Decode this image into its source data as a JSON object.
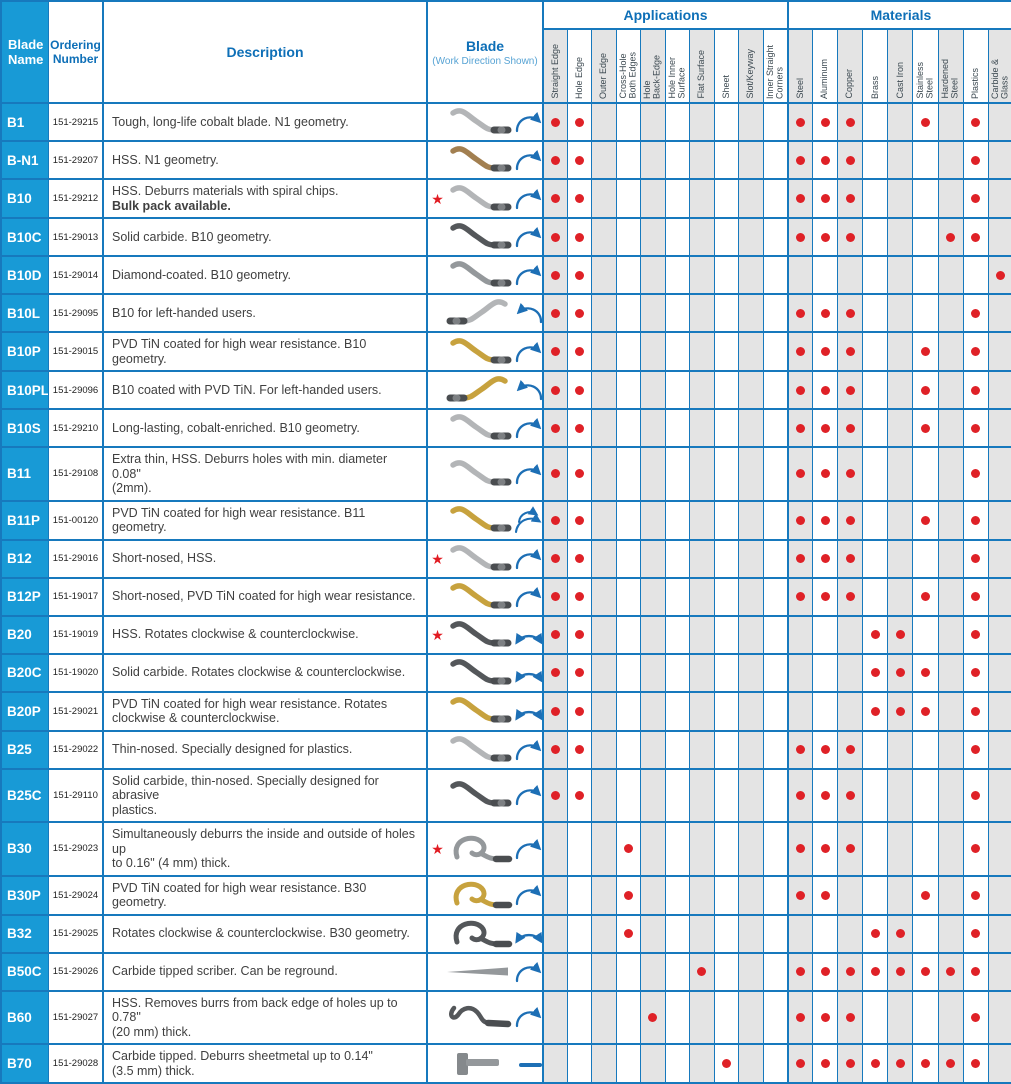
{
  "header": {
    "blade_name": "Blade\nName",
    "ordering_number": "Ordering Number",
    "description": "Description",
    "blade": "Blade",
    "blade_sub": "(Work Direction Shown)",
    "group_applications": "Applications",
    "group_materials": "Materials",
    "applications": [
      "Straight Edge",
      "Hole Edge",
      "Outer Edge",
      "Cross-Hole\nBoth Edges",
      "Hole\nBack-Edge",
      "Hole Inner\nSurface",
      "Flat Surface",
      "Sheet",
      "Slot/Keyway",
      "Inner Straight\nCorners"
    ],
    "materials": [
      "Steel",
      "Aluminum",
      "Copper",
      "Brass",
      "Cast Iron",
      "Stainless\nSteel",
      "Hardened\nSteel",
      "Plastics",
      "Carbide &\nGlass"
    ]
  },
  "colors": {
    "cell_blue": "#189ad6",
    "border_blue": "#1779bd",
    "header_text_blue": "#0e6fb7",
    "sub_text_blue": "#57a3d4",
    "label_gray": "#3d4a52",
    "shade_gray": "#e4e4e4",
    "dot_red": "#df2127",
    "star_red": "#e11b22",
    "arrow_blue": "#1d6fb5",
    "text_dark": "#404040"
  },
  "blade_palette": {
    "silver": "#b3b5b7",
    "bronze": "#a27f50",
    "dark": "#54575a",
    "gold": "#c7a23e",
    "gray": "#94989b",
    "shank": "#4a4d50"
  },
  "icons": {
    "cw": "clockwise-arrow-icon",
    "ccw": "counterclockwise-arrow-icon",
    "both": "both-directions-arrow-icon",
    "cw2": "double-clockwise-arrow-icon",
    "dash": "straight-direction-dash-icon",
    "star": "star-icon"
  },
  "rows": [
    {
      "name": "B1",
      "order": "151-29215",
      "desc": "Tough, long-life cobalt blade. N1 geometry.",
      "desc2": "",
      "star": false,
      "blade": "s",
      "color": "silver",
      "mirror": false,
      "arrow": "cw",
      "apps": [
        1,
        1,
        0,
        0,
        0,
        0,
        0,
        0,
        0,
        0
      ],
      "mats": [
        1,
        1,
        1,
        0,
        0,
        1,
        0,
        1,
        0
      ]
    },
    {
      "name": "B-N1",
      "order": "151-29207",
      "desc": "HSS. N1 geometry.",
      "desc2": "",
      "star": false,
      "blade": "s",
      "color": "bronze",
      "mirror": false,
      "arrow": "cw",
      "apps": [
        1,
        1,
        0,
        0,
        0,
        0,
        0,
        0,
        0,
        0
      ],
      "mats": [
        1,
        1,
        1,
        0,
        0,
        0,
        0,
        1,
        0
      ]
    },
    {
      "name": "B10",
      "order": "151-29212",
      "desc": "HSS. Deburrs materials with spiral chips.",
      "desc2": "Bulk pack available.",
      "star": true,
      "blade": "s",
      "color": "silver",
      "mirror": false,
      "arrow": "cw",
      "apps": [
        1,
        1,
        0,
        0,
        0,
        0,
        0,
        0,
        0,
        0
      ],
      "mats": [
        1,
        1,
        1,
        0,
        0,
        0,
        0,
        1,
        0
      ]
    },
    {
      "name": "B10C",
      "order": "151-29013",
      "desc": "Solid carbide. B10 geometry.",
      "desc2": "",
      "star": false,
      "blade": "s",
      "color": "dark",
      "mirror": false,
      "arrow": "cw",
      "apps": [
        1,
        1,
        0,
        0,
        0,
        0,
        0,
        0,
        0,
        0
      ],
      "mats": [
        1,
        1,
        1,
        0,
        0,
        0,
        1,
        1,
        0
      ]
    },
    {
      "name": "B10D",
      "order": "151-29014",
      "desc": "Diamond-coated. B10 geometry.",
      "desc2": "",
      "star": false,
      "blade": "s",
      "color": "gray",
      "mirror": false,
      "arrow": "cw",
      "apps": [
        1,
        1,
        0,
        0,
        0,
        0,
        0,
        0,
        0,
        0
      ],
      "mats": [
        0,
        0,
        0,
        0,
        0,
        0,
        0,
        0,
        1
      ]
    },
    {
      "name": "B10L",
      "order": "151-29095",
      "desc": "B10 for left-handed users.",
      "desc2": "",
      "star": false,
      "blade": "s",
      "color": "silver",
      "mirror": true,
      "arrow": "ccw",
      "apps": [
        1,
        1,
        0,
        0,
        0,
        0,
        0,
        0,
        0,
        0
      ],
      "mats": [
        1,
        1,
        1,
        0,
        0,
        0,
        0,
        1,
        0
      ]
    },
    {
      "name": "B10P",
      "order": "151-29015",
      "desc": "PVD TiN coated for high wear resistance. B10 geometry.",
      "desc2": "",
      "star": false,
      "blade": "s",
      "color": "gold",
      "mirror": false,
      "arrow": "cw",
      "apps": [
        1,
        1,
        0,
        0,
        0,
        0,
        0,
        0,
        0,
        0
      ],
      "mats": [
        1,
        1,
        1,
        0,
        0,
        1,
        0,
        1,
        0
      ]
    },
    {
      "name": "B10PL",
      "order": "151-29096",
      "desc": "B10 coated with PVD TiN. For left-handed users.",
      "desc2": "",
      "star": false,
      "blade": "s",
      "color": "gold",
      "mirror": true,
      "arrow": "ccw",
      "apps": [
        1,
        1,
        0,
        0,
        0,
        0,
        0,
        0,
        0,
        0
      ],
      "mats": [
        1,
        1,
        1,
        0,
        0,
        1,
        0,
        1,
        0
      ]
    },
    {
      "name": "B10S",
      "order": "151-29210",
      "desc": "Long-lasting, cobalt-enriched. B10 geometry.",
      "desc2": "",
      "star": false,
      "blade": "s",
      "color": "silver",
      "mirror": false,
      "arrow": "cw",
      "apps": [
        1,
        1,
        0,
        0,
        0,
        0,
        0,
        0,
        0,
        0
      ],
      "mats": [
        1,
        1,
        1,
        0,
        0,
        1,
        0,
        1,
        0
      ]
    },
    {
      "name": "B11",
      "order": "151-29108",
      "desc": "Extra thin, HSS. Deburrs holes with min. diameter 0.08\"\n(2mm).",
      "desc2": "",
      "star": false,
      "blade": "s",
      "color": "silver",
      "mirror": false,
      "arrow": "cw",
      "apps": [
        1,
        1,
        0,
        0,
        0,
        0,
        0,
        0,
        0,
        0
      ],
      "mats": [
        1,
        1,
        1,
        0,
        0,
        0,
        0,
        1,
        0
      ]
    },
    {
      "name": "B11P",
      "order": "151-00120",
      "desc": "PVD TiN coated for high wear resistance. B11 geometry.",
      "desc2": "",
      "star": false,
      "blade": "s",
      "color": "gold",
      "mirror": false,
      "arrow": "cw2",
      "apps": [
        1,
        1,
        0,
        0,
        0,
        0,
        0,
        0,
        0,
        0
      ],
      "mats": [
        1,
        1,
        1,
        0,
        0,
        1,
        0,
        1,
        0
      ]
    },
    {
      "name": "B12",
      "order": "151-29016",
      "desc": "Short-nosed, HSS.",
      "desc2": "",
      "star": true,
      "blade": "s",
      "color": "silver",
      "mirror": false,
      "arrow": "cw",
      "apps": [
        1,
        1,
        0,
        0,
        0,
        0,
        0,
        0,
        0,
        0
      ],
      "mats": [
        1,
        1,
        1,
        0,
        0,
        0,
        0,
        1,
        0
      ]
    },
    {
      "name": "B12P",
      "order": "151-19017",
      "desc": "Short-nosed, PVD TiN coated for high wear resistance.",
      "desc2": "",
      "star": false,
      "blade": "s",
      "color": "gold",
      "mirror": false,
      "arrow": "cw",
      "apps": [
        1,
        1,
        0,
        0,
        0,
        0,
        0,
        0,
        0,
        0
      ],
      "mats": [
        1,
        1,
        1,
        0,
        0,
        1,
        0,
        1,
        0
      ]
    },
    {
      "name": "B20",
      "order": "151-19019",
      "desc": "HSS. Rotates clockwise & counterclockwise.",
      "desc2": "",
      "star": true,
      "blade": "s",
      "color": "dark",
      "mirror": false,
      "arrow": "both",
      "apps": [
        1,
        1,
        0,
        0,
        0,
        0,
        0,
        0,
        0,
        0
      ],
      "mats": [
        0,
        0,
        0,
        1,
        1,
        0,
        0,
        1,
        0
      ]
    },
    {
      "name": "B20C",
      "order": "151-19020",
      "desc": "Solid carbide. Rotates clockwise & counterclockwise.",
      "desc2": "",
      "star": false,
      "blade": "s",
      "color": "dark",
      "mirror": false,
      "arrow": "both",
      "apps": [
        1,
        1,
        0,
        0,
        0,
        0,
        0,
        0,
        0,
        0
      ],
      "mats": [
        0,
        0,
        0,
        1,
        1,
        1,
        0,
        1,
        0
      ]
    },
    {
      "name": "B20P",
      "order": "151-29021",
      "desc": "PVD TiN coated for high wear resistance. Rotates\nclockwise & counterclockwise.",
      "desc2": "",
      "star": false,
      "blade": "s",
      "color": "gold",
      "mirror": false,
      "arrow": "both",
      "apps": [
        1,
        1,
        0,
        0,
        0,
        0,
        0,
        0,
        0,
        0
      ],
      "mats": [
        0,
        0,
        0,
        1,
        1,
        1,
        0,
        1,
        0
      ]
    },
    {
      "name": "B25",
      "order": "151-29022",
      "desc": "Thin-nosed. Specially designed for plastics.",
      "desc2": "",
      "star": false,
      "blade": "s",
      "color": "silver",
      "mirror": false,
      "arrow": "cw",
      "apps": [
        1,
        1,
        0,
        0,
        0,
        0,
        0,
        0,
        0,
        0
      ],
      "mats": [
        1,
        1,
        1,
        0,
        0,
        0,
        0,
        1,
        0
      ]
    },
    {
      "name": "B25C",
      "order": "151-29110",
      "desc": "Solid carbide, thin-nosed. Specially designed for abrasive\nplastics.",
      "desc2": "",
      "star": false,
      "blade": "s",
      "color": "dark",
      "mirror": false,
      "arrow": "cw",
      "apps": [
        1,
        1,
        0,
        0,
        0,
        0,
        0,
        0,
        0,
        0
      ],
      "mats": [
        1,
        1,
        1,
        0,
        0,
        0,
        0,
        1,
        0
      ]
    },
    {
      "name": "B30",
      "order": "151-29023",
      "desc": "Simultaneously deburrs the inside and outside of holes up\nto 0.16\" (4 mm) thick.",
      "desc2": "",
      "star": true,
      "blade": "hook",
      "color": "gray",
      "mirror": false,
      "arrow": "cw",
      "apps": [
        0,
        0,
        0,
        1,
        0,
        0,
        0,
        0,
        0,
        0
      ],
      "mats": [
        1,
        1,
        1,
        0,
        0,
        0,
        0,
        1,
        0
      ]
    },
    {
      "name": "B30P",
      "order": "151-29024",
      "desc": "PVD TiN coated for high wear resistance. B30 geometry.",
      "desc2": "",
      "star": false,
      "blade": "hook",
      "color": "gold",
      "mirror": false,
      "arrow": "cw",
      "apps": [
        0,
        0,
        0,
        1,
        0,
        0,
        0,
        0,
        0,
        0
      ],
      "mats": [
        1,
        1,
        0,
        0,
        0,
        1,
        0,
        1,
        0
      ]
    },
    {
      "name": "B32",
      "order": "151-29025",
      "desc": "Rotates clockwise & counterclockwise. B30 geometry.",
      "desc2": "",
      "star": false,
      "blade": "hook",
      "color": "dark",
      "mirror": false,
      "arrow": "both",
      "apps": [
        0,
        0,
        0,
        1,
        0,
        0,
        0,
        0,
        0,
        0
      ],
      "mats": [
        0,
        0,
        0,
        1,
        1,
        0,
        0,
        1,
        0
      ]
    },
    {
      "name": "B50C",
      "order": "151-29026",
      "desc": "Carbide tipped scriber. Can be reground.",
      "desc2": "",
      "star": false,
      "blade": "needle",
      "color": "gray",
      "mirror": false,
      "arrow": "cw",
      "apps": [
        0,
        0,
        0,
        0,
        0,
        0,
        1,
        0,
        0,
        0
      ],
      "mats": [
        1,
        1,
        1,
        1,
        1,
        1,
        1,
        1,
        0
      ]
    },
    {
      "name": "B60",
      "order": "151-29027",
      "desc": "HSS. Removes burrs from back edge of holes up to 0.78\"\n(20 mm) thick.",
      "desc2": "",
      "star": false,
      "blade": "hookcurl",
      "color": "dark",
      "mirror": false,
      "arrow": "cw",
      "apps": [
        0,
        0,
        0,
        0,
        1,
        0,
        0,
        0,
        0,
        0
      ],
      "mats": [
        1,
        1,
        1,
        0,
        0,
        0,
        0,
        1,
        0
      ]
    },
    {
      "name": "B70",
      "order": "151-29028",
      "desc": "Carbide tipped. Deburrs sheetmetal up to 0.14\"\n(3.5 mm) thick.",
      "desc2": "",
      "star": false,
      "blade": "tee",
      "color": "gray",
      "mirror": false,
      "arrow": "dash",
      "apps": [
        0,
        0,
        0,
        0,
        0,
        0,
        0,
        1,
        0,
        0
      ],
      "mats": [
        1,
        1,
        1,
        1,
        1,
        1,
        1,
        1,
        0
      ]
    }
  ]
}
